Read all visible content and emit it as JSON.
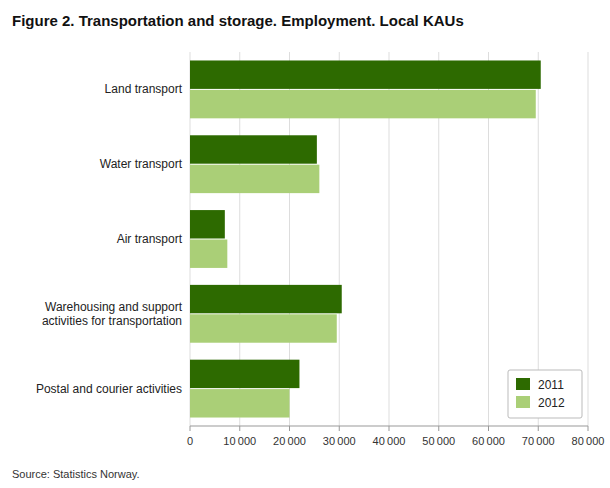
{
  "chart_data": {
    "type": "bar",
    "orientation": "horizontal",
    "title": "Figure 2. Transportation and storage. Employment. Local KAUs",
    "annotations": [
      "Source: Statistics Norway."
    ],
    "categories": [
      "Land transport",
      "Water transport",
      "Air transport",
      "Warehousing and support\nactivities for transportation",
      "Postal and courier activities"
    ],
    "series": [
      {
        "name": "2011",
        "color": "#2d6a00",
        "values": [
          70500,
          25500,
          7000,
          30500,
          22000
        ]
      },
      {
        "name": "2012",
        "color": "#aacf77",
        "values": [
          69500,
          26000,
          7500,
          29500,
          20000
        ]
      }
    ],
    "xlim": [
      0,
      80000
    ],
    "xticks": [
      0,
      {
        "value": 10000,
        "label": "10 000"
      },
      {
        "value": 20000,
        "label": "20 000"
      },
      {
        "value": 30000,
        "label": "30 000"
      },
      {
        "value": 40000,
        "label": "40 000"
      },
      {
        "value": 50000,
        "label": "50 000"
      },
      {
        "value": 60000,
        "label": "60 000"
      },
      {
        "value": 70000,
        "label": "70 000"
      },
      {
        "value": 80000,
        "label": "80 000"
      }
    ],
    "grid": true,
    "legend": "lower right"
  }
}
